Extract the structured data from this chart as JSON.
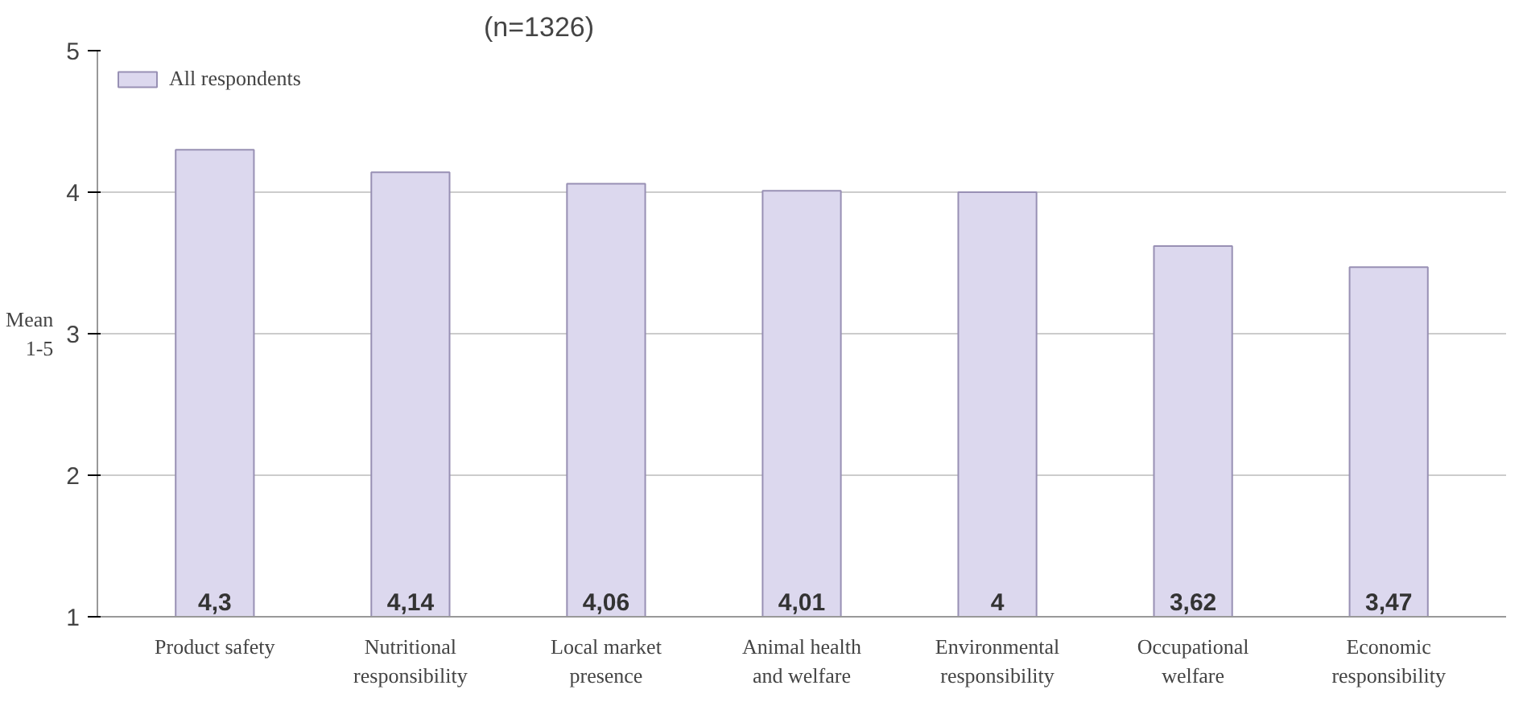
{
  "chart_data": {
    "type": "bar",
    "ylabel": "Mean\n1-5",
    "categories": [
      "Product safety",
      "Nutritional responsibility",
      "Local market presence",
      "Animal health and welfare",
      "Environmental responsibility",
      "Occupational welfare",
      "Economic responsibility"
    ],
    "series": [
      {
        "name": "All respondents",
        "color": "#dcd8ee",
        "values": [
          4.3,
          4.14,
          4.06,
          4.01,
          4,
          3.62,
          3.47
        ]
      }
    ],
    "value_labels": [
      "4,3",
      "4,14",
      "4,06",
      "4,01",
      "4",
      "3,62",
      "3,47"
    ],
    "annotations": [
      "(n=1326)"
    ],
    "ylim": [
      1,
      5
    ],
    "yticks": [
      1,
      2,
      3,
      4,
      5
    ],
    "grid": "y",
    "legend": "top left"
  }
}
